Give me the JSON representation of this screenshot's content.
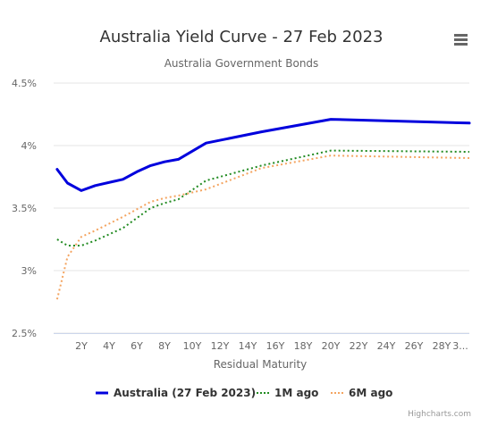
{
  "chart_data": {
    "type": "line",
    "title": "Australia Yield Curve - 27 Feb 2023",
    "subtitle": "Australia Government Bonds",
    "xlabel": "Residual Maturity",
    "ylabel": "",
    "x_tick_labels": [
      "2Y",
      "4Y",
      "6Y",
      "8Y",
      "10Y",
      "12Y",
      "14Y",
      "16Y",
      "18Y",
      "20Y",
      "22Y",
      "24Y",
      "26Y",
      "28Y",
      "3..."
    ],
    "y_tick_labels": [
      "2.5%",
      "3%",
      "3.5%",
      "4%",
      "4.5%"
    ],
    "xlim": [
      0,
      30
    ],
    "ylim": [
      2.5,
      4.5
    ],
    "grid": true,
    "legend_position": "bottom-center",
    "series": [
      {
        "name": "Australia (27 Feb 2023)",
        "color": "#0000dd",
        "style": "solid",
        "points": [
          [
            0.25,
            3.81
          ],
          [
            1,
            3.7
          ],
          [
            2,
            3.64
          ],
          [
            3,
            3.68
          ],
          [
            5,
            3.73
          ],
          [
            6,
            3.79
          ],
          [
            7,
            3.84
          ],
          [
            8,
            3.87
          ],
          [
            9,
            3.89
          ],
          [
            11,
            4.02
          ],
          [
            15,
            4.11
          ],
          [
            20,
            4.21
          ],
          [
            30,
            4.18
          ]
        ]
      },
      {
        "name": "1M ago",
        "color": "#228b22",
        "style": "dotted",
        "points": [
          [
            0.25,
            3.25
          ],
          [
            1,
            3.2
          ],
          [
            2,
            3.2
          ],
          [
            3,
            3.24
          ],
          [
            5,
            3.34
          ],
          [
            6,
            3.42
          ],
          [
            7,
            3.5
          ],
          [
            8,
            3.54
          ],
          [
            9,
            3.57
          ],
          [
            11,
            3.72
          ],
          [
            15,
            3.84
          ],
          [
            20,
            3.96
          ],
          [
            30,
            3.95
          ]
        ]
      },
      {
        "name": "6M ago",
        "color": "#f4a460",
        "style": "dotted",
        "points": [
          [
            0.25,
            2.77
          ],
          [
            1,
            3.11
          ],
          [
            2,
            3.27
          ],
          [
            3,
            3.32
          ],
          [
            5,
            3.43
          ],
          [
            6,
            3.49
          ],
          [
            7,
            3.55
          ],
          [
            8,
            3.58
          ],
          [
            9,
            3.6
          ],
          [
            11,
            3.65
          ],
          [
            15,
            3.82
          ],
          [
            20,
            3.92
          ],
          [
            30,
            3.9
          ]
        ]
      }
    ]
  },
  "credits": "Highcharts.com",
  "menu_icon": "hamburger-menu-icon"
}
